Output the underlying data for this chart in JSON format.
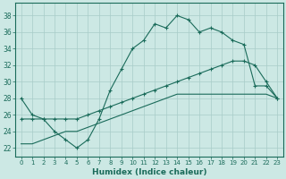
{
  "bg_color": "#cce8e4",
  "grid_color": "#a8ccc8",
  "line_color": "#1a6b5a",
  "xlabel": "Humidex (Indice chaleur)",
  "xlim": [
    -0.5,
    23.5
  ],
  "ylim": [
    21.0,
    39.5
  ],
  "yticks": [
    22,
    24,
    26,
    28,
    30,
    32,
    34,
    36,
    38
  ],
  "xticks": [
    0,
    1,
    2,
    3,
    4,
    5,
    6,
    7,
    8,
    9,
    10,
    11,
    12,
    13,
    14,
    15,
    16,
    17,
    18,
    19,
    20,
    21,
    22,
    23
  ],
  "line1_x": [
    0,
    1,
    2,
    3,
    4,
    5,
    6,
    7,
    8,
    9,
    10,
    11,
    12,
    13,
    14,
    15,
    16,
    17,
    18,
    19,
    20,
    21,
    22,
    23
  ],
  "line1_y": [
    28.0,
    26.0,
    25.5,
    24.0,
    23.0,
    22.0,
    23.0,
    25.5,
    29.0,
    31.5,
    34.0,
    35.0,
    37.0,
    36.5,
    38.0,
    37.5,
    36.0,
    36.5,
    36.0,
    35.0,
    34.5,
    29.5,
    29.5,
    28.0
  ],
  "line1_markers": true,
  "line2_x": [
    0,
    1,
    2,
    3,
    4,
    5,
    6,
    7,
    8,
    9,
    10,
    11,
    12,
    13,
    14,
    15,
    16,
    17,
    18,
    19,
    20,
    21,
    22,
    23
  ],
  "line2_y": [
    25.5,
    25.5,
    25.5,
    25.5,
    25.5,
    25.5,
    26.0,
    26.5,
    27.0,
    27.5,
    28.0,
    28.5,
    29.0,
    29.5,
    30.0,
    30.5,
    31.0,
    31.5,
    32.0,
    32.5,
    32.5,
    32.0,
    30.0,
    28.0
  ],
  "line2_markers": true,
  "line3_x": [
    0,
    1,
    2,
    3,
    4,
    5,
    6,
    7,
    8,
    9,
    10,
    11,
    12,
    13,
    14,
    15,
    16,
    17,
    18,
    19,
    20,
    21,
    22,
    23
  ],
  "line3_y": [
    22.5,
    22.5,
    23.0,
    23.5,
    24.0,
    24.0,
    24.5,
    25.0,
    25.5,
    26.0,
    26.5,
    27.0,
    27.5,
    28.0,
    28.5,
    28.5,
    28.5,
    28.5,
    28.5,
    28.5,
    28.5,
    28.5,
    28.5,
    28.0
  ],
  "line3_markers": false
}
